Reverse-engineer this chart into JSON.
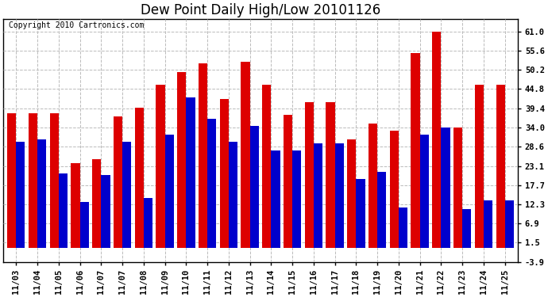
{
  "title": "Dew Point Daily High/Low 20101126",
  "copyright": "Copyright 2010 Cartronics.com",
  "dates": [
    "11/03",
    "11/04",
    "11/05",
    "11/06",
    "11/07",
    "11/07",
    "11/08",
    "11/09",
    "11/10",
    "11/11",
    "11/12",
    "11/13",
    "11/14",
    "11/15",
    "11/16",
    "11/17",
    "11/18",
    "11/19",
    "11/20",
    "11/21",
    "11/22",
    "11/23",
    "11/24",
    "11/25"
  ],
  "high_values": [
    38.0,
    38.0,
    38.0,
    24.0,
    25.0,
    37.0,
    39.5,
    46.0,
    49.5,
    52.0,
    42.0,
    52.5,
    46.0,
    37.5,
    41.0,
    41.0,
    30.5,
    35.0,
    33.0,
    55.0,
    61.0,
    34.0,
    46.0,
    46.0
  ],
  "low_values": [
    30.0,
    30.5,
    21.0,
    13.0,
    20.5,
    30.0,
    14.0,
    32.0,
    42.5,
    36.5,
    30.0,
    34.5,
    27.5,
    27.5,
    29.5,
    29.5,
    19.5,
    21.5,
    11.5,
    32.0,
    34.0,
    11.0,
    13.5,
    13.5
  ],
  "bar_color_high": "#dd0000",
  "bar_color_low": "#0000cc",
  "background_color": "#ffffff",
  "plot_bg_color": "#ffffff",
  "grid_color": "#bbbbbb",
  "ylim_min": -3.9,
  "ylim_max": 64.6,
  "yticks": [
    -3.9,
    1.5,
    6.9,
    12.3,
    17.7,
    23.1,
    28.6,
    34.0,
    39.4,
    44.8,
    50.2,
    55.6,
    61.0
  ],
  "title_fontsize": 12,
  "copyright_fontsize": 7,
  "tick_fontsize": 7.5,
  "bar_width": 0.42,
  "figwidth": 6.9,
  "figheight": 3.75,
  "dpi": 100
}
